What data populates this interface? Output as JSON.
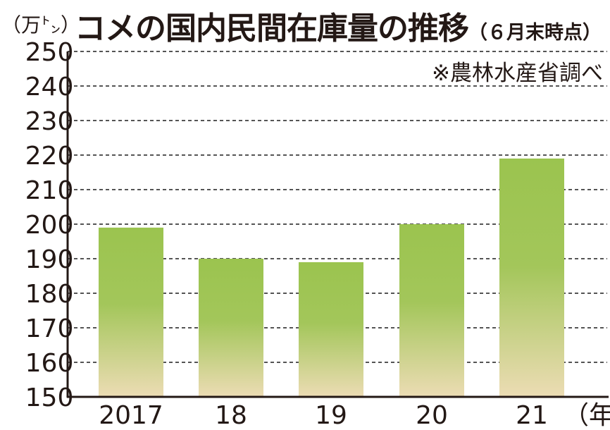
{
  "chart_data": {
    "type": "bar",
    "title": "コメの国内民間在庫量の推移",
    "subtitle": "（６月末時点）",
    "unit_label": "（万㌧）",
    "xlabel": "（年）",
    "source": "※農林水産省調べ",
    "categories": [
      "2017",
      "18",
      "19",
      "20",
      "21"
    ],
    "values": [
      199,
      190,
      189,
      200,
      219
    ],
    "ylim": [
      150,
      250
    ],
    "yticks": [
      150,
      160,
      170,
      180,
      190,
      200,
      210,
      220,
      230,
      240,
      250
    ],
    "grid": true,
    "legend": "none",
    "colors": {
      "bar_top": "#9bc44f",
      "bar_mid": "#a3c65a",
      "bar_bottom": "#ecdcb4",
      "grid": "#555555",
      "axis": "#231815"
    }
  }
}
